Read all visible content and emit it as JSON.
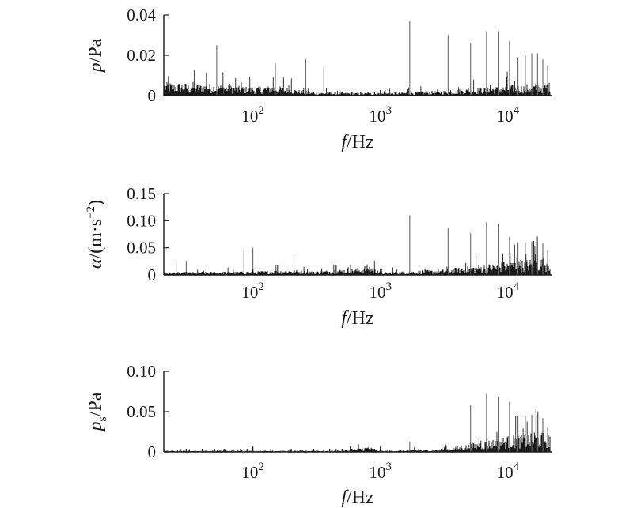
{
  "colors": {
    "axis": "#1a1a1a",
    "data": "#1a1a1a",
    "peak_lines": "#666666"
  },
  "chart_data": [
    {
      "type": "line",
      "title": "",
      "xlabel": {
        "symbol": "f",
        "unit": "/Hz"
      },
      "ylabel": {
        "symbol": "p",
        "subscript": "",
        "unit": "/Pa"
      },
      "x_scale": "log",
      "xlim": [
        20,
        22000
      ],
      "ylim": [
        0,
        0.04
      ],
      "yticks": [
        0,
        0.02,
        0.04
      ],
      "ytick_labels": [
        "0",
        "0.02",
        "0.04"
      ],
      "xticks": [
        100,
        1000,
        10000
      ],
      "xtick_labels": [
        {
          "base": "10",
          "exp": "2"
        },
        {
          "base": "10",
          "exp": "3"
        },
        {
          "base": "10",
          "exp": "4"
        }
      ],
      "floor": [
        [
          20,
          0.004
        ],
        [
          50,
          0.0035
        ],
        [
          100,
          0.0025
        ],
        [
          150,
          0.003
        ],
        [
          300,
          0.001
        ],
        [
          1000,
          0.0008
        ],
        [
          3000,
          0.0015
        ],
        [
          10000,
          0.003
        ],
        [
          22000,
          0.004
        ]
      ],
      "peaks": [
        [
          52,
          0.025
        ],
        [
          150,
          0.016
        ],
        [
          260,
          0.018
        ],
        [
          360,
          0.014
        ],
        [
          1700,
          0.037
        ],
        [
          3400,
          0.03
        ],
        [
          5100,
          0.026
        ],
        [
          6800,
          0.032
        ],
        [
          8500,
          0.032
        ],
        [
          10300,
          0.027
        ],
        [
          12000,
          0.019
        ],
        [
          13700,
          0.02
        ],
        [
          15400,
          0.021
        ],
        [
          17100,
          0.021
        ],
        [
          18800,
          0.018
        ],
        [
          20500,
          0.015
        ]
      ]
    },
    {
      "type": "line",
      "title": "",
      "xlabel": {
        "symbol": "f",
        "unit": "/Hz"
      },
      "ylabel": {
        "symbol": "α",
        "subscript": "",
        "unit": "/(m·s",
        "unit_sup": "−2",
        "unit_close": ")"
      },
      "x_scale": "log",
      "xlim": [
        20,
        22000
      ],
      "ylim": [
        0,
        0.15
      ],
      "yticks": [
        0,
        0.05,
        0.1,
        0.15
      ],
      "ytick_labels": [
        "0",
        "0.05",
        "0.10",
        "0.15"
      ],
      "xticks": [
        100,
        1000,
        10000
      ],
      "xtick_labels": [
        {
          "base": "10",
          "exp": "2"
        },
        {
          "base": "10",
          "exp": "3"
        },
        {
          "base": "10",
          "exp": "4"
        }
      ],
      "floor": [
        [
          20,
          0.003
        ],
        [
          100,
          0.004
        ],
        [
          200,
          0.006
        ],
        [
          300,
          0.004
        ],
        [
          700,
          0.008
        ],
        [
          800,
          0.012
        ],
        [
          1000,
          0.003
        ],
        [
          3000,
          0.006
        ],
        [
          10000,
          0.015
        ],
        [
          22000,
          0.02
        ]
      ],
      "peaks": [
        [
          25,
          0.025
        ],
        [
          30,
          0.026
        ],
        [
          85,
          0.045
        ],
        [
          100,
          0.05
        ],
        [
          210,
          0.032
        ],
        [
          1700,
          0.11
        ],
        [
          3400,
          0.087
        ],
        [
          5100,
          0.077
        ],
        [
          6800,
          0.098
        ],
        [
          8500,
          0.094
        ],
        [
          10300,
          0.07
        ],
        [
          12000,
          0.06
        ],
        [
          13700,
          0.06
        ],
        [
          15400,
          0.062
        ],
        [
          17100,
          0.062
        ],
        [
          18800,
          0.058
        ],
        [
          20500,
          0.045
        ]
      ]
    },
    {
      "type": "line",
      "title": "",
      "xlabel": {
        "symbol": "f",
        "unit": "/Hz"
      },
      "ylabel": {
        "symbol": "p",
        "subscript": "s",
        "unit": "/Pa"
      },
      "x_scale": "log",
      "xlim": [
        20,
        22000
      ],
      "ylim": [
        0,
        0.1
      ],
      "yticks": [
        0,
        0.05,
        0.1
      ],
      "ytick_labels": [
        "0",
        "0.05",
        "0.10"
      ],
      "xticks": [
        100,
        1000,
        10000
      ],
      "xtick_labels": [
        {
          "base": "10",
          "exp": "2"
        },
        {
          "base": "10",
          "exp": "3"
        },
        {
          "base": "10",
          "exp": "4"
        }
      ],
      "floor": [
        [
          20,
          0.001
        ],
        [
          500,
          0.001
        ],
        [
          800,
          0.004
        ],
        [
          1000,
          0.001
        ],
        [
          3000,
          0.002
        ],
        [
          5000,
          0.006
        ],
        [
          10000,
          0.012
        ],
        [
          22000,
          0.015
        ]
      ],
      "peaks": [
        [
          1700,
          0.013
        ],
        [
          5100,
          0.058
        ],
        [
          6800,
          0.072
        ],
        [
          8500,
          0.068
        ],
        [
          10300,
          0.062
        ],
        [
          12000,
          0.045
        ],
        [
          13700,
          0.045
        ],
        [
          15400,
          0.046
        ],
        [
          17100,
          0.046
        ],
        [
          18800,
          0.042
        ],
        [
          20500,
          0.03
        ]
      ]
    }
  ]
}
